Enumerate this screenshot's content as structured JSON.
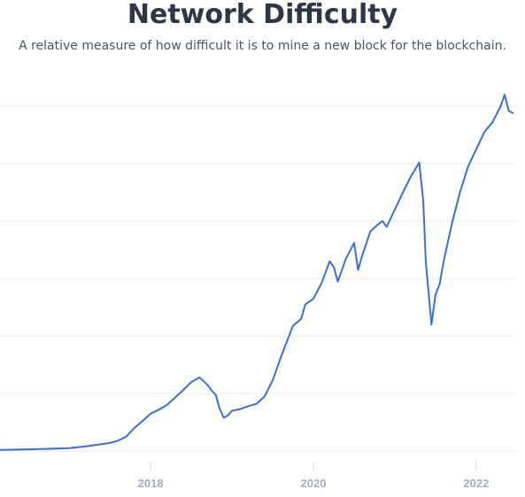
{
  "header": {
    "title": "Network Difficulty",
    "subtitle": "A relative measure of how difficult it is to mine a new block for the blockchain."
  },
  "chart_data": {
    "type": "line",
    "title": "Network Difficulty",
    "subtitle": "A relative measure of how difficult it is to mine a new block for the blockchain.",
    "xlabel": "",
    "ylabel": "",
    "x_tick_labels": [
      "2018",
      "2020",
      "2022"
    ],
    "x_ticks": [
      2018,
      2020,
      2022
    ],
    "xlim": [
      2016.15,
      2022.48
    ],
    "ylim": [
      0,
      6
    ],
    "grid": "horizontal",
    "y_tick_labels_visible": false,
    "line_color": "#3b6fd4",
    "series": [
      {
        "x": [
          2016.15,
          2016.5,
          2016.8,
          2017.0,
          2017.2,
          2017.4,
          2017.5,
          2017.6,
          2017.7,
          2017.8,
          2017.9,
          2018.0,
          2018.1,
          2018.2,
          2018.3,
          2018.4,
          2018.5,
          2018.6,
          2018.7,
          2018.75,
          2018.8,
          2018.85,
          2018.9,
          2018.95,
          2019.0,
          2019.1,
          2019.2,
          2019.3,
          2019.4,
          2019.5,
          2019.6,
          2019.7,
          2019.75,
          2019.85,
          2019.9,
          2020.0,
          2020.1,
          2020.2,
          2020.25,
          2020.3,
          2020.4,
          2020.5,
          2020.55,
          2020.6,
          2020.7,
          2020.8,
          2020.85,
          2020.9,
          2021.0,
          2021.1,
          2021.2,
          2021.3,
          2021.35,
          2021.38,
          2021.45,
          2021.5,
          2021.55,
          2021.6,
          2021.7,
          2021.8,
          2021.9,
          2022.0,
          2022.1,
          2022.2,
          2022.3,
          2022.35,
          2022.4,
          2022.45
        ],
        "y": [
          0.02,
          0.03,
          0.04,
          0.05,
          0.08,
          0.12,
          0.14,
          0.18,
          0.25,
          0.4,
          0.52,
          0.65,
          0.72,
          0.8,
          0.93,
          1.06,
          1.2,
          1.28,
          1.15,
          1.05,
          0.98,
          0.73,
          0.58,
          0.62,
          0.7,
          0.73,
          0.78,
          0.82,
          0.95,
          1.23,
          1.63,
          2.0,
          2.18,
          2.3,
          2.55,
          2.65,
          2.92,
          3.3,
          3.2,
          2.95,
          3.35,
          3.62,
          3.15,
          3.4,
          3.82,
          3.95,
          4.0,
          3.9,
          4.2,
          4.5,
          4.78,
          5.02,
          4.35,
          3.3,
          2.2,
          2.72,
          2.9,
          3.3,
          3.95,
          4.5,
          4.95,
          5.25,
          5.55,
          5.72,
          6.0,
          6.2,
          5.92,
          5.88
        ]
      }
    ]
  }
}
